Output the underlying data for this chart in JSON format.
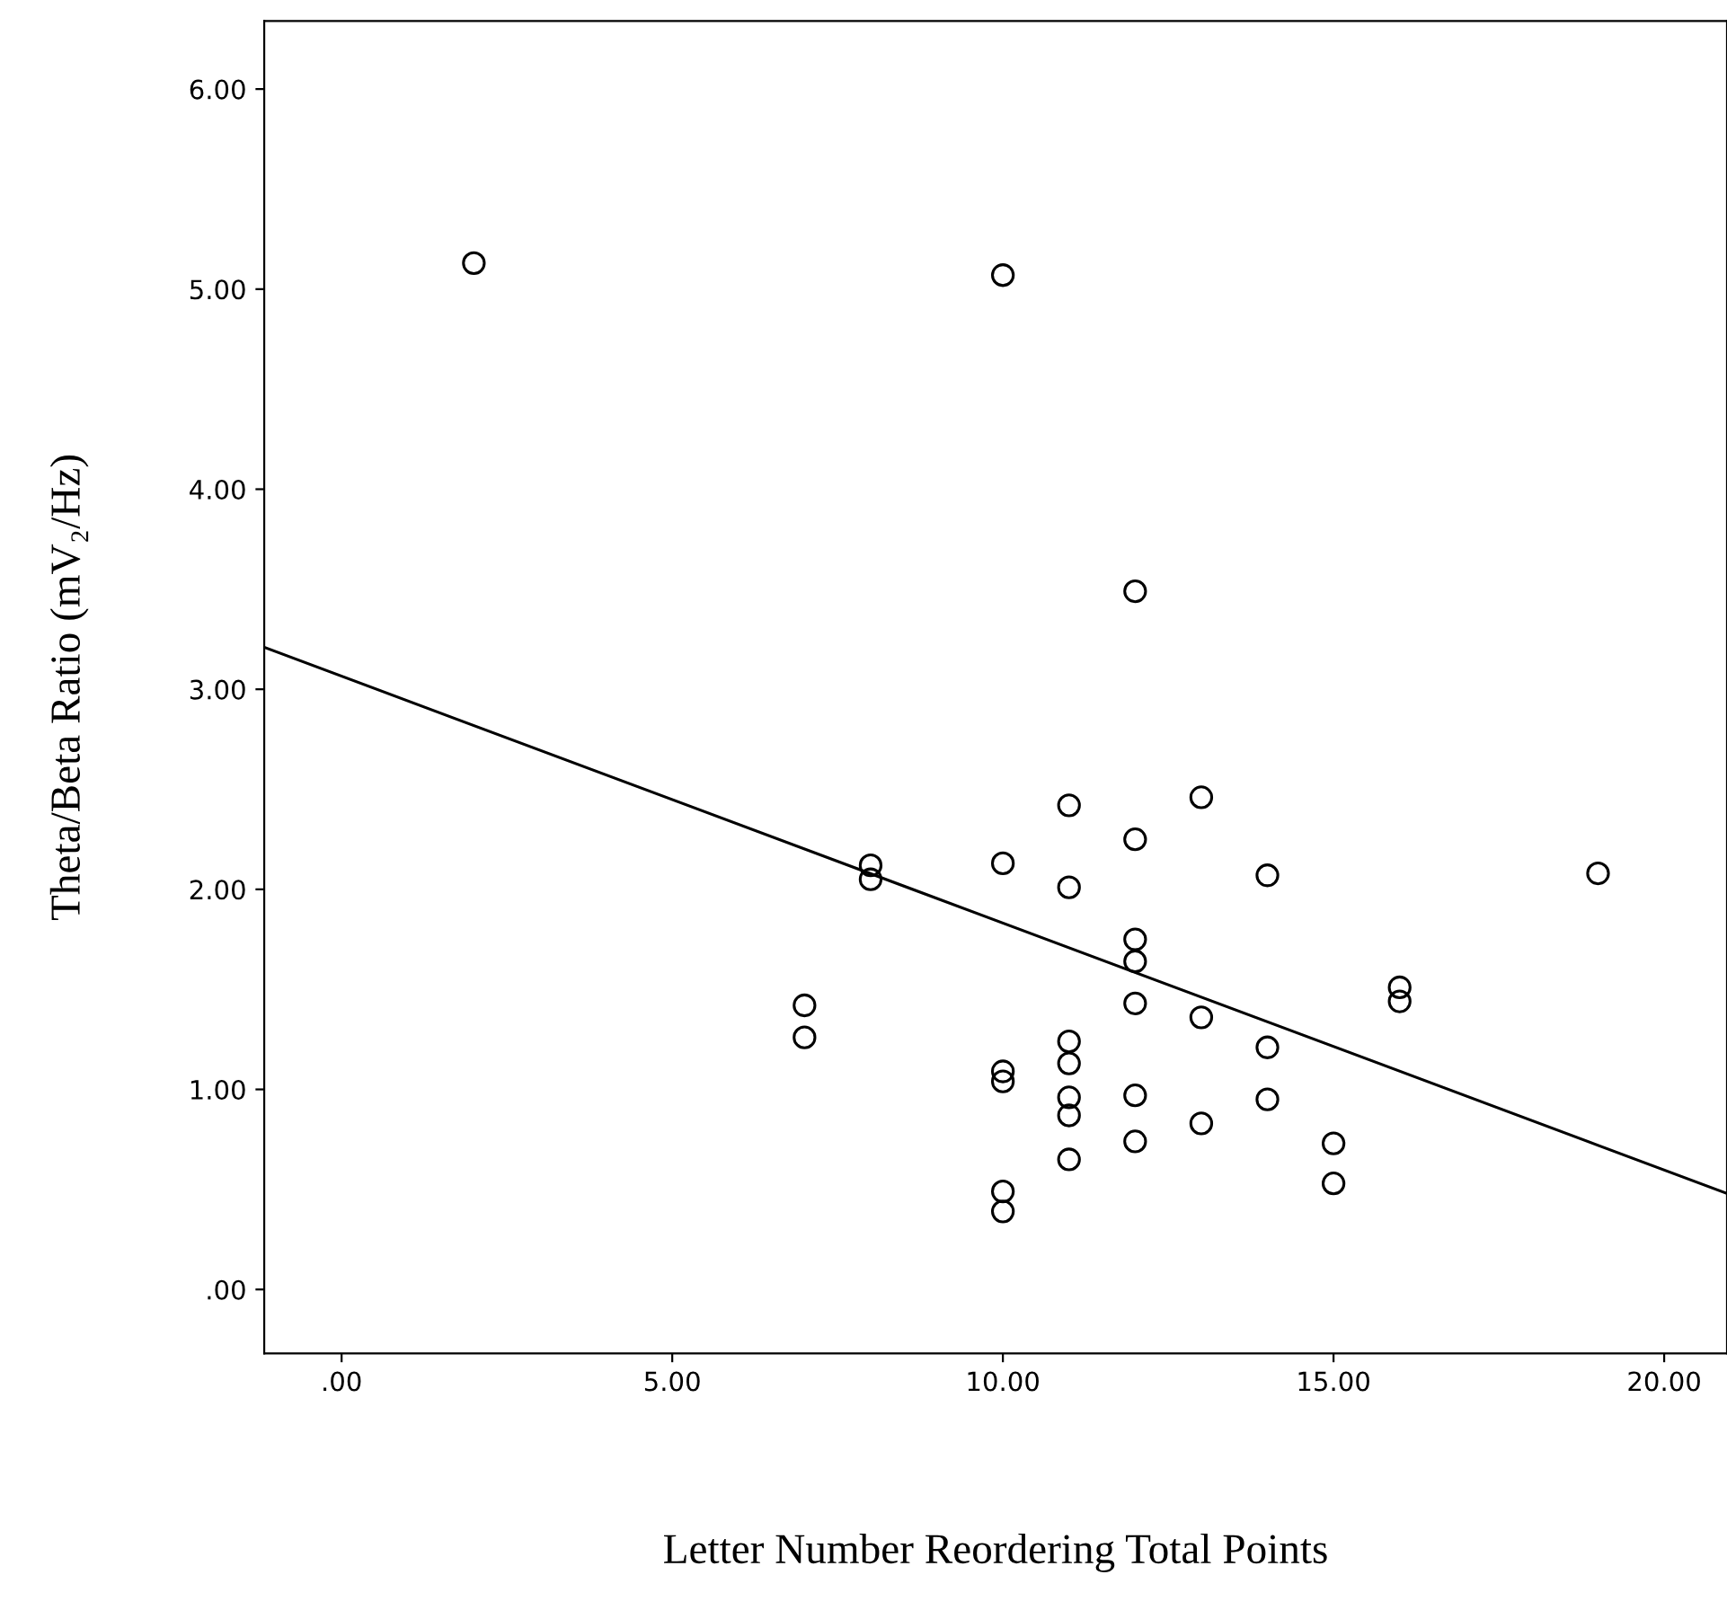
{
  "chart_data": {
    "type": "scatter",
    "xlabel": "Letter Number Reordering Total Points",
    "ylabel": "Theta/Beta Ratio (mV₂/Hz)",
    "grid": false,
    "legend": false,
    "xlim": [
      -1.17,
      20.95
    ],
    "ylim": [
      -0.32,
      6.34
    ],
    "xticks": [
      {
        "value": 0,
        "label": ".00"
      },
      {
        "value": 5,
        "label": "5.00"
      },
      {
        "value": 10,
        "label": "10.00"
      },
      {
        "value": 15,
        "label": "15.00"
      },
      {
        "value": 20,
        "label": "20.00"
      }
    ],
    "yticks": [
      {
        "value": 0,
        "label": ".00"
      },
      {
        "value": 1,
        "label": "1.00"
      },
      {
        "value": 2,
        "label": "2.00"
      },
      {
        "value": 3,
        "label": "3.00"
      },
      {
        "value": 4,
        "label": "4.00"
      },
      {
        "value": 5,
        "label": "5.00"
      },
      {
        "value": 6,
        "label": "6.00"
      }
    ],
    "series": [
      {
        "marker": "circle",
        "color": "#000000",
        "x": [
          2,
          10,
          12,
          13,
          11,
          12,
          10,
          8,
          8,
          11,
          14,
          19,
          12,
          12,
          16,
          16,
          7,
          12,
          13,
          7,
          11,
          11,
          14,
          10,
          10,
          11,
          12,
          14,
          11,
          13,
          12,
          15,
          11,
          15,
          10,
          10
        ],
        "values": [
          5.13,
          5.07,
          3.49,
          2.46,
          2.42,
          2.25,
          2.13,
          2.12,
          2.05,
          2.01,
          2.07,
          2.08,
          1.75,
          1.64,
          1.51,
          1.44,
          1.42,
          1.43,
          1.36,
          1.26,
          1.24,
          1.13,
          1.21,
          1.09,
          1.04,
          0.96,
          0.97,
          0.95,
          0.87,
          0.83,
          0.74,
          0.73,
          0.65,
          0.53,
          0.49,
          0.39
        ]
      },
      {
        "type": "line",
        "marker": "none",
        "color": "#000000",
        "x": [
          -1.17,
          20.95
        ],
        "values": [
          3.21,
          0.48
        ]
      }
    ]
  }
}
